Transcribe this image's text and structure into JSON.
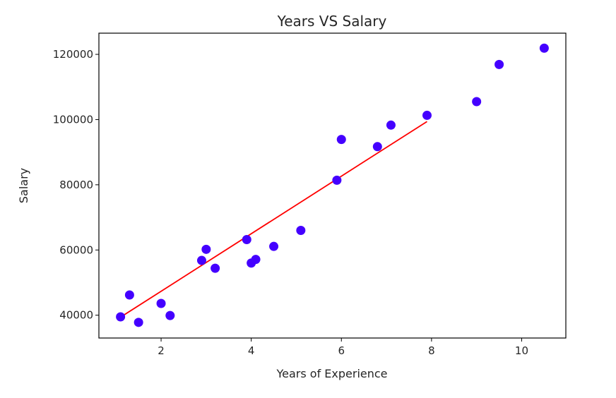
{
  "chart_data": {
    "type": "scatter",
    "title": "Years VS Salary",
    "xlabel": "Years of Experience",
    "ylabel": "Salary",
    "xlim": [
      0.62,
      10.98
    ],
    "ylim": [
      33000,
      126500
    ],
    "xticks": [
      2,
      4,
      6,
      8,
      10
    ],
    "yticks": [
      40000,
      60000,
      80000,
      100000,
      120000
    ],
    "grid": false,
    "points_color": "#4400ff",
    "line_color": "#ff0000",
    "points": [
      {
        "x": 1.1,
        "y": 39500
      },
      {
        "x": 1.3,
        "y": 46200
      },
      {
        "x": 1.5,
        "y": 37800
      },
      {
        "x": 2.0,
        "y": 43600
      },
      {
        "x": 2.2,
        "y": 39900
      },
      {
        "x": 2.9,
        "y": 56800
      },
      {
        "x": 3.0,
        "y": 60200
      },
      {
        "x": 3.2,
        "y": 54400
      },
      {
        "x": 3.9,
        "y": 63200
      },
      {
        "x": 4.0,
        "y": 56000
      },
      {
        "x": 4.1,
        "y": 57100
      },
      {
        "x": 4.5,
        "y": 61100
      },
      {
        "x": 5.1,
        "y": 66000
      },
      {
        "x": 5.9,
        "y": 81400
      },
      {
        "x": 6.0,
        "y": 93900
      },
      {
        "x": 6.8,
        "y": 91700
      },
      {
        "x": 7.1,
        "y": 98300
      },
      {
        "x": 7.9,
        "y": 101300
      },
      {
        "x": 9.0,
        "y": 105500
      },
      {
        "x": 9.5,
        "y": 116900
      },
      {
        "x": 10.5,
        "y": 121900
      }
    ],
    "regression_line": {
      "x": [
        1.1,
        7.9
      ],
      "y": [
        39400,
        99400
      ]
    }
  }
}
